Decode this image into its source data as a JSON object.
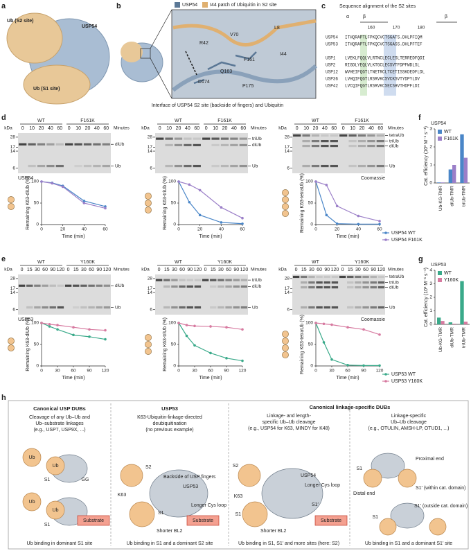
{
  "panels": {
    "a": {
      "label": "a",
      "texts": [
        "Ub (S2 site)",
        "USP54",
        "Ub (S1 site)"
      ]
    },
    "b": {
      "label": "b",
      "legend": [
        "USP54",
        "I44 patch of Ubiquitin in S2 site"
      ],
      "residues": [
        "R42",
        "V70",
        "L8",
        "I44",
        "F161",
        "Q163",
        "D174",
        "P175"
      ],
      "caption": "Interface of USP54 S2 site (backside of fingers) and Ubiquitin"
    },
    "c": {
      "label": "c",
      "title": "Sequence alignment of the S2 sites",
      "structure": [
        "α",
        "β",
        "β"
      ],
      "positions": [
        160,
        170,
        180
      ],
      "rows": [
        {
          "name": "USP54",
          "seq": "ITHQRAPTLFPKQCVCTSGATS.DHLPFIQM"
        },
        {
          "name": "USP53",
          "seq": "ITHQRAPTLFPKQCVCTSGASS.DHLPFTEF"
        },
        {
          "name": "USP1",
          "seq": "LVEKLFQQLVLRTNCLECLESLTERREDFQDI"
        },
        {
          "name": "USP2",
          "seq": "RIGDLYEQLVLKTGCLECSVTFDPFWDLSL"
        },
        {
          "name": "USP12",
          "seq": "WVHEIFQGTLTNETRCLTCETISSKDEDFLDL"
        },
        {
          "name": "USP36",
          "seq": "LVHQIFQGTLRSRVKCSVCKSVTYDPYLDV"
        },
        {
          "name": "USP42",
          "seq": "LVCQIFQGTLRSRVKCSECSHVTHDPFLDI"
        }
      ]
    },
    "d": {
      "label": "d",
      "gels": [
        {
          "kda_label": "kDa",
          "kda": [
            28,
            17,
            14,
            6
          ],
          "groups": [
            "WT",
            "F161K"
          ],
          "lanes": [
            0,
            10,
            20,
            40,
            60
          ],
          "unit": "Minutes",
          "bands": [
            "diUb",
            "Ub"
          ],
          "note": "USP54"
        },
        {
          "kda_label": "kDa",
          "kda": [
            28,
            17,
            14,
            6
          ],
          "groups": [
            "WT",
            "F161K"
          ],
          "lanes": [
            0,
            10,
            20,
            40,
            60
          ],
          "unit": "Minutes",
          "bands": [
            "triUb",
            "diUb",
            "Ub"
          ]
        },
        {
          "kda_label": "kDa",
          "kda": [
            28,
            17,
            14,
            6
          ],
          "groups": [
            "WT",
            "F161K"
          ],
          "lanes": [
            0,
            10,
            20,
            40,
            60
          ],
          "unit": "Minutes",
          "bands": [
            "tetraUb",
            "triUb",
            "diUb",
            "Ub"
          ],
          "note": "Coomassie"
        }
      ]
    },
    "e": {
      "label": "e",
      "gels": [
        {
          "kda_label": "kDa",
          "kda": [
            28,
            17,
            14,
            6
          ],
          "groups": [
            "WT",
            "Y160K"
          ],
          "lanes": [
            0,
            15,
            30,
            60,
            90,
            120
          ],
          "unit": "Minutes",
          "bands": [
            "diUb",
            "Ub"
          ],
          "note": "USP53"
        },
        {
          "kda_label": "kDa",
          "kda": [
            28,
            17,
            14,
            6
          ],
          "groups": [
            "WT",
            "Y160K"
          ],
          "lanes": [
            0,
            15,
            30,
            60,
            90,
            120
          ],
          "unit": "Minutes",
          "bands": [
            "triUb",
            "diUb",
            "Ub"
          ]
        },
        {
          "kda_label": "kDa",
          "kda": [
            28,
            17,
            14,
            6
          ],
          "groups": [
            "WT",
            "Y160K"
          ],
          "lanes": [
            0,
            15,
            30,
            60,
            90,
            120
          ],
          "unit": "Minutes",
          "bands": [
            "tetraUb",
            "triUb",
            "diUb",
            "Ub"
          ],
          "note": "Coomassie"
        }
      ]
    },
    "f": {
      "label": "f"
    },
    "g": {
      "label": "g"
    },
    "h": {
      "label": "h",
      "header": "Canonical linkage-specific DUBs",
      "boxes": [
        {
          "title": "Canonical USP DUBs",
          "subtitle": [
            "Cleavage of any Ub–Ub and",
            "Ub–substrate linkages",
            "(e.g., USP7, USP9X, ...)"
          ],
          "labels": [
            "Ub",
            "Ub",
            "S1",
            "GG",
            "Ub",
            "Ub",
            "S1",
            "Substrate"
          ],
          "footer": "Ub binding in dominant S1 site"
        },
        {
          "title": "USP53",
          "subtitle": [
            "K63-Ubiquitin-linkage-directed",
            "deubiquitination",
            "(no previous example)"
          ],
          "labels": [
            "S2",
            "Backside of USP fingers",
            "USP53",
            "K63",
            "Longer Cys loop",
            "S1",
            "Shorter BL2",
            "Substrate"
          ],
          "footer": "Ub binding in S1 and a dominant S2 site"
        },
        {
          "subtitle": [
            "Linkage- and length-",
            "specific Ub–Ub cleavage",
            "(e.g., USP54 for K63, MINDY for K48)"
          ],
          "labels": [
            "USP54",
            "S2",
            "Longer Cys loop",
            "K63",
            "S1",
            "S1′",
            "Shorter BL2",
            "Substrate"
          ],
          "footer": "Ub binding in S1, S1′ and more sites (here: S2)"
        },
        {
          "subtitle": [
            "Linkage-specific",
            "Ub–Ub cleavage",
            "(e.g., OTULIN, AMSH-LP, OTUD1, ...)"
          ],
          "labels": [
            "Proximal end",
            "S1",
            "S1′ (within cat. domain)",
            "Distal end",
            "S1",
            "S1′ (outside cat. domain)"
          ],
          "footer": "Ub binding in S1 and a dominant S1′ site"
        }
      ]
    }
  },
  "chart_data": [
    {
      "type": "line",
      "x_label": "Time (min)",
      "y_label": "Remaining K63-diUb (%)",
      "x": [
        0,
        10,
        20,
        40,
        60
      ],
      "xlim": [
        0,
        60
      ],
      "xticks": [
        0,
        20,
        40,
        60
      ],
      "ylim": [
        0,
        100
      ],
      "yticks": [
        0,
        50,
        100
      ],
      "series": [
        {
          "color": "#4a86c8",
          "values": [
            100,
            97,
            90,
            55,
            42
          ]
        },
        {
          "color": "#9b7fc8",
          "values": [
            100,
            96,
            88,
            50,
            38
          ]
        }
      ]
    },
    {
      "type": "line",
      "x_label": "Time (min)",
      "y_label": "Remaining K63-triUb (%)",
      "x": [
        0,
        10,
        20,
        40,
        60
      ],
      "xlim": [
        0,
        60
      ],
      "xticks": [
        0,
        20,
        40,
        60
      ],
      "ylim": [
        0,
        100
      ],
      "yticks": [
        0,
        50,
        100
      ],
      "series": [
        {
          "color": "#4a86c8",
          "values": [
            100,
            52,
            22,
            5,
            2
          ]
        },
        {
          "color": "#9b7fc8",
          "values": [
            100,
            93,
            80,
            40,
            15
          ]
        }
      ]
    },
    {
      "type": "line",
      "x_label": "Time (min)",
      "y_label": "Remaining K63-tetraUb (%)",
      "x": [
        0,
        10,
        20,
        40,
        60
      ],
      "xlim": [
        0,
        60
      ],
      "xticks": [
        0,
        20,
        40,
        60
      ],
      "ylim": [
        0,
        100
      ],
      "yticks": [
        0,
        50,
        100
      ],
      "legend": "right",
      "series": [
        {
          "name": "USP54 WT",
          "color": "#4a86c8",
          "values": [
            100,
            22,
            2,
            1,
            1
          ]
        },
        {
          "name": "USP54 F161K",
          "color": "#9b7fc8",
          "values": [
            100,
            92,
            43,
            20,
            8
          ]
        }
      ]
    },
    {
      "type": "line",
      "x_label": "Time (min)",
      "y_label": "Remaining K63-diUb (%)",
      "x": [
        0,
        15,
        30,
        60,
        90,
        120
      ],
      "xlim": [
        0,
        120
      ],
      "xticks": [
        0,
        30,
        60,
        90,
        120
      ],
      "ylim": [
        0,
        100
      ],
      "yticks": [
        0,
        50,
        100
      ],
      "series": [
        {
          "color": "#3aaa8a",
          "values": [
            100,
            92,
            85,
            72,
            68,
            62
          ]
        },
        {
          "color": "#d77aa0",
          "values": [
            100,
            97,
            95,
            90,
            85,
            83
          ]
        }
      ]
    },
    {
      "type": "line",
      "x_label": "Time (min)",
      "y_label": "Remaining K63-triUb (%)",
      "x": [
        0,
        15,
        30,
        60,
        90,
        120
      ],
      "xlim": [
        0,
        120
      ],
      "xticks": [
        0,
        30,
        60,
        90,
        120
      ],
      "ylim": [
        0,
        100
      ],
      "yticks": [
        0,
        50,
        100
      ],
      "series": [
        {
          "color": "#3aaa8a",
          "values": [
            100,
            70,
            48,
            30,
            18,
            12
          ]
        },
        {
          "color": "#d77aa0",
          "values": [
            100,
            95,
            93,
            92,
            90,
            85
          ]
        }
      ]
    },
    {
      "type": "line",
      "x_label": "Time (min)",
      "y_label": "Remaining K63-tetraUb (%)",
      "x": [
        0,
        15,
        30,
        60,
        90,
        120
      ],
      "xlim": [
        0,
        120
      ],
      "xticks": [
        0,
        30,
        60,
        90,
        120
      ],
      "ylim": [
        0,
        100
      ],
      "yticks": [
        0,
        50,
        100
      ],
      "legend": "right",
      "series": [
        {
          "name": "USP53 WT",
          "color": "#3aaa8a",
          "values": [
            100,
            55,
            15,
            2,
            1,
            1
          ]
        },
        {
          "name": "USP53 Y160K",
          "color": "#d77aa0",
          "values": [
            100,
            98,
            96,
            90,
            85,
            73
          ]
        }
      ]
    },
    {
      "type": "bar",
      "title": "USP54",
      "y_label": "Cat. efficiency (10³ M⁻¹ s⁻¹)",
      "categories": [
        "Ub-KG-TMR",
        "diUb-TMR",
        "triUb-TMR"
      ],
      "ylim": [
        0,
        3
      ],
      "yticks": [
        0,
        1,
        2,
        3
      ],
      "series": [
        {
          "name": "WT",
          "color": "#4a86c8",
          "values": [
            0.03,
            0.75,
            2.7
          ]
        },
        {
          "name": "F161K",
          "color": "#9b7fc8",
          "values": [
            0.03,
            1.0,
            1.4
          ]
        }
      ]
    },
    {
      "type": "bar",
      "title": "USP53",
      "y_label": "Cat. efficiency (10³ M⁻¹ s⁻¹)",
      "categories": [
        "Ub-KG-TMR",
        "diUb-TMR",
        "triUb-TMR"
      ],
      "ylim": [
        0,
        4
      ],
      "yticks": [
        0,
        1,
        2,
        3,
        4
      ],
      "series": [
        {
          "name": "WT",
          "color": "#3aaa8a",
          "values": [
            0.5,
            0.15,
            3.2
          ]
        },
        {
          "name": "Y160K",
          "color": "#d77aa0",
          "values": [
            0.25,
            0.05,
            0.2
          ]
        }
      ]
    }
  ]
}
